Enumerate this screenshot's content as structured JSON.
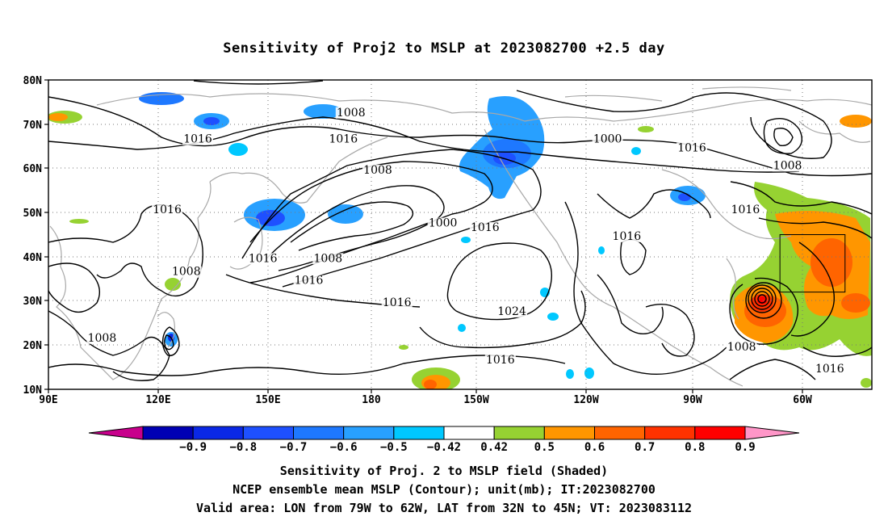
{
  "title": "Sensitivity of Proj2 to MSLP at 2023082700 +2.5 day",
  "map": {
    "lat_ticks": [
      "80N",
      "70N",
      "60N",
      "50N",
      "40N",
      "30N",
      "20N",
      "10N"
    ],
    "lon_ticks": [
      "90E",
      "120E",
      "150E",
      "180",
      "150W",
      "120W",
      "90W",
      "60W"
    ],
    "contour_labels": [
      {
        "text": "1008",
        "lon": 169,
        "lat": 72
      },
      {
        "text": "1016",
        "lon": 129,
        "lat": 66
      },
      {
        "text": "1016",
        "lon": 167,
        "lat": 66
      },
      {
        "text": "1016",
        "lon": -102,
        "lat": 64
      },
      {
        "text": "1000",
        "lon": -124,
        "lat": 66
      },
      {
        "text": "1008",
        "lon": -77,
        "lat": 60
      },
      {
        "text": "1008",
        "lon": 176,
        "lat": 59
      },
      {
        "text": "1016",
        "lon": 121,
        "lat": 50
      },
      {
        "text": "1000",
        "lon": 193,
        "lat": 47
      },
      {
        "text": "1016",
        "lon": 204,
        "lat": 46
      },
      {
        "text": "1016",
        "lon": 241,
        "lat": 44
      },
      {
        "text": "1016",
        "lon": 272,
        "lat": 50
      },
      {
        "text": "1008",
        "lon": 126,
        "lat": 36
      },
      {
        "text": "1016",
        "lon": 146,
        "lat": 39
      },
      {
        "text": "1008",
        "lon": 163,
        "lat": 39
      },
      {
        "text": "1016",
        "lon": 158,
        "lat": 34
      },
      {
        "text": "1016",
        "lon": 181,
        "lat": 29
      },
      {
        "text": "1024",
        "lon": 211,
        "lat": 27
      },
      {
        "text": "1008",
        "lon": 104,
        "lat": 21
      },
      {
        "text": "1016",
        "lon": 208,
        "lat": 16
      },
      {
        "text": "1008",
        "lon": 271,
        "lat": 19
      },
      {
        "text": "1016",
        "lon": 294,
        "lat": 14
      }
    ],
    "valid_box": {
      "lon_min": -79,
      "lon_max": -62,
      "lat_min": 32,
      "lat_max": 45
    }
  },
  "colorbar": {
    "tick_labels": [
      "-0.9",
      "-0.8",
      "-0.7",
      "-0.6",
      "-0.5",
      "-0.42",
      "0.42",
      "0.5",
      "0.6",
      "0.7",
      "0.8",
      "0.9"
    ],
    "colors": [
      "#c8008c",
      "#0000b4",
      "#0a28e6",
      "#1e50ff",
      "#1e78ff",
      "#28a0ff",
      "#00c8ff",
      "#ffffff",
      "#96d232",
      "#ff9600",
      "#ff6400",
      "#ff3200",
      "#ff0000",
      "#ff96c8"
    ]
  },
  "caption": {
    "line1": "Sensitivity of Proj. 2 to MSLP field (Shaded)",
    "line2": "NCEP ensemble mean MSLP (Contour); unit(mb); IT:2023082700",
    "line3": "Valid area: LON from 79W to 62W, LAT from 32N to 45N; VT: 2023083112"
  }
}
